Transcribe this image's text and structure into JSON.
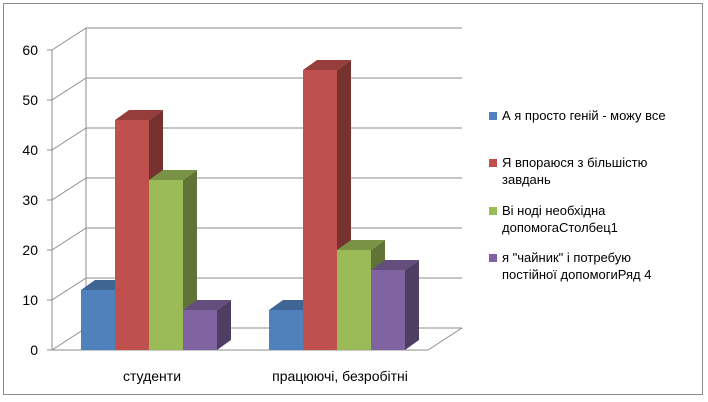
{
  "chart_data": {
    "type": "bar",
    "categories": [
      "студенти",
      "працюючі, безробітні"
    ],
    "series": [
      {
        "name": "А я просто геній - можу все",
        "values": [
          12,
          8
        ],
        "color": "#4f81bd"
      },
      {
        "name": "Я впораюся з більшістю завдань",
        "values": [
          46,
          56
        ],
        "color": "#c0504d"
      },
      {
        "name": "Ві ноді необхідна допомогаСтолбец1",
        "values": [
          34,
          20
        ],
        "color": "#9bbb59"
      },
      {
        "name": "я \"чайник\" і потребую постійної допомогиРяд 4",
        "values": [
          8,
          16
        ],
        "color": "#8064a2"
      }
    ],
    "legend_lines": [
      [
        "А я просто геній - можу все"
      ],
      [
        "Я впораюся з більшістю",
        "завдань"
      ],
      [
        "Ві ноді необхідна",
        "допомогаСтолбец1"
      ],
      [
        "я \"чайник\" і потребую",
        "постійної допомогиРяд 4"
      ]
    ],
    "yticks": [
      0,
      10,
      20,
      30,
      40,
      50,
      60
    ],
    "ylim": [
      0,
      60
    ],
    "grid": true,
    "legend_position": "right",
    "style": "3d-column"
  }
}
